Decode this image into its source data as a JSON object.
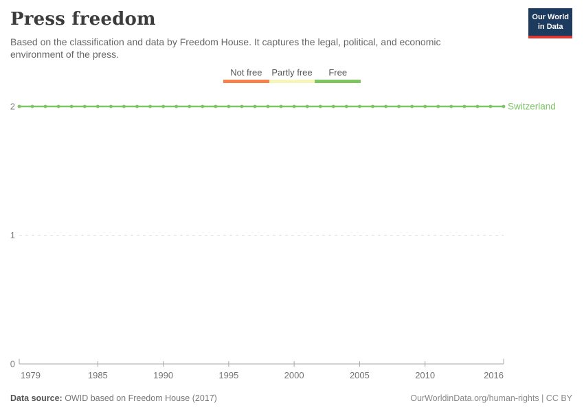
{
  "header": {
    "title": "Press freedom",
    "subtitle": "Based on the classification and data by Freedom House. It captures the legal, political, and economic environment of the press.",
    "logo": {
      "line1": "Our World",
      "line2": "in Data"
    }
  },
  "legend": {
    "items": [
      {
        "label": "Not free",
        "color": "#f5824c"
      },
      {
        "label": "Partly free",
        "color": "#f7f6ba"
      },
      {
        "label": "Free",
        "color": "#7ec561"
      }
    ]
  },
  "chart_data": {
    "type": "line",
    "title": "Press freedom",
    "xlabel": "",
    "ylabel": "",
    "x_axis": {
      "ticks": [
        1979,
        1985,
        1990,
        1995,
        2000,
        2005,
        2010,
        2016
      ],
      "range": [
        1979,
        2016
      ]
    },
    "y_axis": {
      "ticks": [
        0,
        1,
        2
      ],
      "range": [
        0,
        2
      ],
      "gridlines": "dashed"
    },
    "series": [
      {
        "name": "Switzerland",
        "color": "#7dc567",
        "x": [
          1979,
          1980,
          1981,
          1982,
          1983,
          1984,
          1985,
          1986,
          1987,
          1988,
          1989,
          1990,
          1991,
          1992,
          1993,
          1994,
          1995,
          1996,
          1997,
          1998,
          1999,
          2000,
          2001,
          2002,
          2003,
          2004,
          2005,
          2006,
          2007,
          2008,
          2009,
          2010,
          2011,
          2012,
          2013,
          2014,
          2015,
          2016
        ],
        "y": [
          2,
          2,
          2,
          2,
          2,
          2,
          2,
          2,
          2,
          2,
          2,
          2,
          2,
          2,
          2,
          2,
          2,
          2,
          2,
          2,
          2,
          2,
          2,
          2,
          2,
          2,
          2,
          2,
          2,
          2,
          2,
          2,
          2,
          2,
          2,
          2,
          2,
          2
        ]
      }
    ],
    "category_scale": {
      "0": "Not free",
      "1": "Partly free",
      "2": "Free"
    }
  },
  "footer": {
    "source_label": "Data source:",
    "source_text": " OWID based on Freedom House (2017)",
    "credit": "OurWorldinData.org/human-rights | CC BY"
  }
}
